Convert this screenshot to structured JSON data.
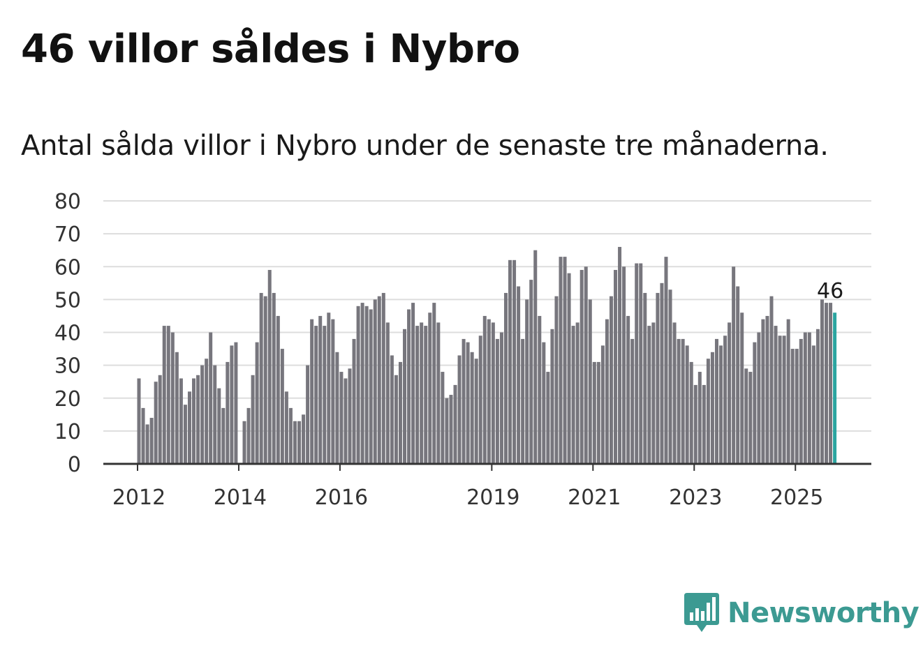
{
  "title": "46 villor såldes i Nybro",
  "subtitle": "Antal sålda villor i Nybro under de senaste tre månaderna.",
  "brand": {
    "name": "Newsworthy",
    "color": "#3c9a92",
    "icon": "bar-chart-speech-bubble-icon"
  },
  "chart_data": {
    "type": "bar",
    "title": "46 villor såldes i Nybro",
    "xlabel": "",
    "ylabel": "",
    "ylim": [
      0,
      80
    ],
    "yticks": [
      0,
      10,
      20,
      30,
      40,
      50,
      60,
      70,
      80
    ],
    "grid": true,
    "bar_color": "#77767d",
    "highlight_color": "#2ba5a0",
    "highlight_label": "46",
    "x_tick_labels": [
      {
        "label": "2012",
        "index": 0
      },
      {
        "label": "2014",
        "index": 24
      },
      {
        "label": "2016",
        "index": 48
      },
      {
        "label": "2019",
        "index": 84
      },
      {
        "label": "2021",
        "index": 108
      },
      {
        "label": "2023",
        "index": 132
      },
      {
        "label": "2025",
        "index": 156
      }
    ],
    "start": "2012-01",
    "values": [
      26,
      17,
      12,
      14,
      25,
      27,
      42,
      42,
      40,
      34,
      26,
      18,
      22,
      26,
      27,
      30,
      32,
      40,
      30,
      23,
      17,
      31,
      36,
      37,
      null,
      13,
      17,
      27,
      37,
      52,
      51,
      59,
      52,
      45,
      35,
      22,
      17,
      13,
      13,
      15,
      30,
      44,
      42,
      45,
      42,
      46,
      44,
      34,
      28,
      26,
      29,
      38,
      48,
      49,
      48,
      47,
      50,
      51,
      52,
      43,
      33,
      27,
      31,
      41,
      47,
      49,
      42,
      43,
      42,
      46,
      49,
      43,
      28,
      20,
      21,
      24,
      33,
      38,
      37,
      34,
      32,
      39,
      45,
      44,
      43,
      38,
      40,
      52,
      62,
      62,
      54,
      38,
      50,
      56,
      65,
      45,
      37,
      28,
      41,
      51,
      63,
      63,
      58,
      42,
      43,
      59,
      60,
      50,
      31,
      31,
      36,
      44,
      51,
      59,
      66,
      60,
      45,
      38,
      61,
      61,
      52,
      42,
      43,
      52,
      55,
      63,
      53,
      43,
      38,
      38,
      36,
      31,
      24,
      28,
      24,
      32,
      34,
      38,
      36,
      39,
      43,
      60,
      54,
      46,
      29,
      28,
      37,
      40,
      44,
      45,
      51,
      42,
      39,
      39,
      44,
      35,
      35,
      38,
      40,
      40,
      36,
      41,
      50,
      49,
      49,
      46
    ]
  }
}
